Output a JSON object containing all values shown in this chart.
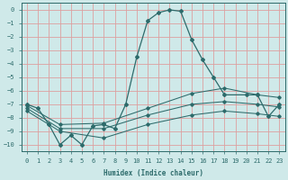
{
  "title": "",
  "xlabel": "Humidex (Indice chaleur)",
  "background_color": "#cfe9e9",
  "grid_color": "#dda0a0",
  "line_color": "#2d6b6b",
  "xlim": [
    -0.5,
    23.5
  ],
  "ylim": [
    -10.5,
    0.5
  ],
  "xticks": [
    0,
    1,
    2,
    3,
    4,
    5,
    6,
    7,
    8,
    9,
    10,
    11,
    12,
    13,
    14,
    15,
    16,
    17,
    18,
    19,
    20,
    21,
    22,
    23
  ],
  "yticks": [
    0,
    -1,
    -2,
    -3,
    -4,
    -5,
    -6,
    -7,
    -8,
    -9,
    -10
  ],
  "curve1_x": [
    0,
    1,
    2,
    3,
    4,
    5,
    6,
    7,
    8,
    9,
    10,
    11,
    12,
    13,
    14,
    15,
    16,
    17,
    18,
    20,
    21,
    22,
    23
  ],
  "curve1_y": [
    -7.0,
    -7.3,
    -8.5,
    -10.0,
    -9.3,
    -10.0,
    -8.6,
    -8.5,
    -8.8,
    -7.0,
    -3.5,
    -0.8,
    -0.2,
    0.0,
    -0.1,
    -2.2,
    -3.7,
    -5.0,
    -6.3,
    -6.3,
    -6.3,
    -7.9,
    -7.0
  ],
  "curve2_x": [
    0,
    3,
    7,
    11,
    15,
    18,
    21,
    23
  ],
  "curve2_y": [
    -7.1,
    -8.5,
    -8.4,
    -7.3,
    -6.2,
    -5.8,
    -6.3,
    -6.5
  ],
  "curve3_x": [
    0,
    3,
    7,
    11,
    15,
    18,
    21,
    23
  ],
  "curve3_y": [
    -7.3,
    -8.8,
    -8.8,
    -7.8,
    -7.0,
    -6.8,
    -7.0,
    -7.2
  ],
  "curve4_x": [
    0,
    3,
    7,
    11,
    15,
    18,
    21,
    23
  ],
  "curve4_y": [
    -7.5,
    -9.0,
    -9.5,
    -8.5,
    -7.8,
    -7.5,
    -7.7,
    -7.9
  ]
}
